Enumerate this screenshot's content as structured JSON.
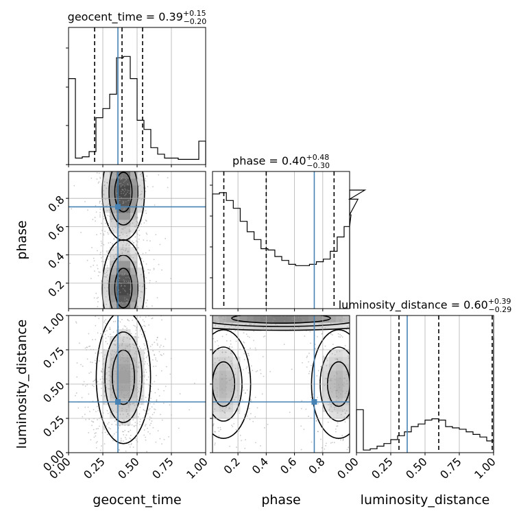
{
  "chart_data": {
    "type": "corner",
    "params": [
      "geocent_time",
      "phase",
      "luminosity_distance"
    ],
    "axis_labels": [
      "geocent_time",
      "phase",
      "luminosity_distance"
    ],
    "ranges": [
      [
        0.0,
        1.0
      ],
      [
        0.02,
        0.99
      ],
      [
        0.0,
        1.0
      ]
    ],
    "truths": [
      0.36,
      0.74,
      0.37
    ],
    "truth_color": "#4682b4",
    "hist_color": "#000000",
    "grid": true,
    "titles": [
      {
        "param": "geocent_time",
        "prefix": "geocent_time = ",
        "median": "0.39",
        "plus": "+0.15",
        "minus": "−0.20"
      },
      {
        "param": "phase",
        "prefix": "phase = ",
        "median": "0.40",
        "plus": "+0.48",
        "minus": "−0.30"
      },
      {
        "param": "luminosity_distance",
        "prefix": "luminosity_distance = ",
        "median": "0.60",
        "plus": "+0.39",
        "minus": "−0.29"
      }
    ],
    "quantiles": [
      [
        0.19,
        0.39,
        0.54
      ],
      [
        0.1,
        0.4,
        0.88
      ],
      [
        0.31,
        0.6,
        0.99
      ]
    ],
    "ticks": {
      "geocent_time": [
        "0.00",
        "0.25",
        "0.50",
        "0.75",
        "1.00"
      ],
      "phase": [
        "0.2",
        "0.4",
        "0.6",
        "0.8"
      ],
      "luminosity_distance": [
        "0.00",
        "0.25",
        "0.50",
        "0.75",
        "1.00"
      ]
    },
    "tick_values": {
      "geocent_time": [
        0.0,
        0.25,
        0.5,
        0.75,
        1.0
      ],
      "phase": [
        0.2,
        0.4,
        0.6,
        0.8
      ],
      "luminosity_distance": [
        0.0,
        0.25,
        0.5,
        0.75,
        1.0
      ]
    },
    "histograms": [
      {
        "param": "geocent_time",
        "step": 0.05,
        "start": 0.0,
        "values": [
          0.66,
          0.05,
          0.06,
          0.1,
          0.36,
          0.43,
          0.54,
          0.82,
          0.83,
          0.66,
          0.34,
          0.27,
          0.13,
          0.08,
          0.05,
          0.05,
          0.04,
          0.04,
          0.04,
          0.18
        ]
      },
      {
        "param": "phase",
        "step": 0.049,
        "start": 0.02,
        "values": [
          0.88,
          0.89,
          0.83,
          0.77,
          0.67,
          0.59,
          0.53,
          0.46,
          0.45,
          0.4,
          0.37,
          0.34,
          0.33,
          0.33,
          0.34,
          0.36,
          0.38,
          0.44,
          0.55,
          0.63,
          0.72,
          0.84,
          0.91
        ]
      },
      {
        "param": "luminosity_distance",
        "step": 0.05,
        "start": 0.0,
        "values": [
          0.33,
          0.02,
          0.03,
          0.05,
          0.07,
          0.1,
          0.13,
          0.16,
          0.2,
          0.22,
          0.25,
          0.26,
          0.25,
          0.2,
          0.19,
          0.18,
          0.16,
          0.14,
          0.12,
          0.09,
          0.88
        ]
      }
    ],
    "contour_panels": [
      {
        "x": "geocent_time",
        "y": "phase"
      },
      {
        "x": "geocent_time",
        "y": "luminosity_distance"
      },
      {
        "x": "phase",
        "y": "luminosity_distance"
      }
    ],
    "density_peaks": {
      "geocent_time_vs_phase": [
        {
          "x": 0.4,
          "y": 0.85
        },
        {
          "x": 0.4,
          "y": 0.15
        }
      ],
      "geocent_time_vs_luminosity_distance": [
        {
          "x": 0.4,
          "y": 0.5
        }
      ],
      "phase_vs_luminosity_distance": [
        {
          "x": 0.1,
          "y": 0.5
        },
        {
          "x": 0.9,
          "y": 0.5
        }
      ]
    }
  }
}
